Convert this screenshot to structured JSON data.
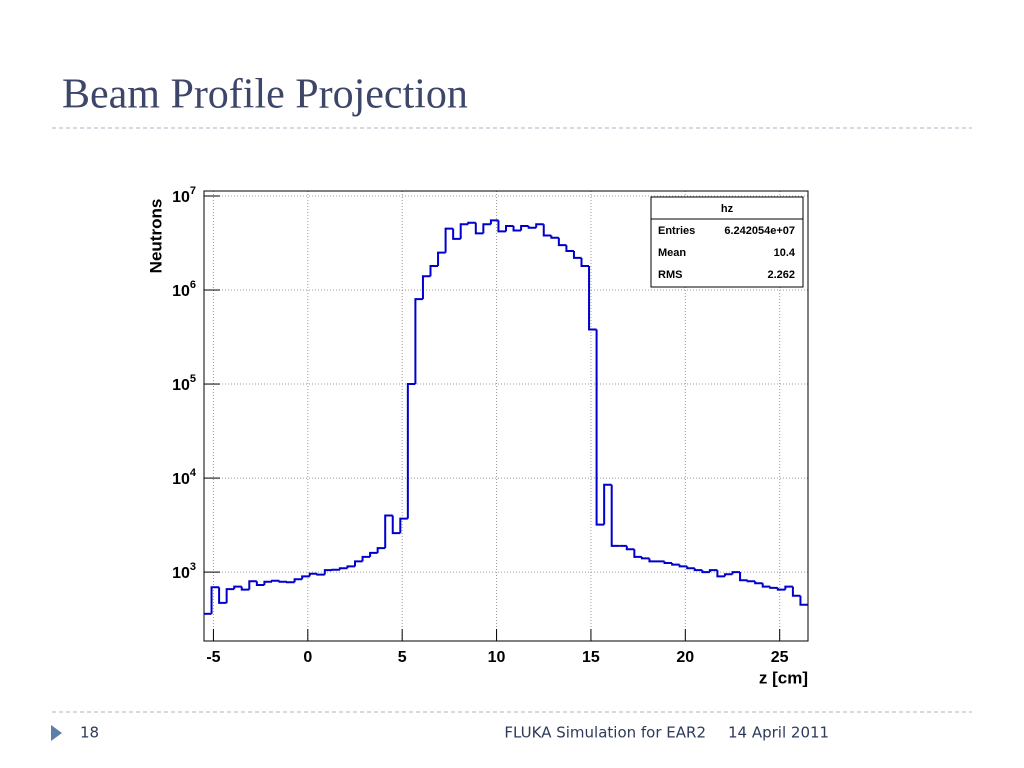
{
  "title": "Beam Profile Projection",
  "footer": {
    "slide_number": "18",
    "presentation": "FLUKA Simulation for EAR2",
    "date": "14 April 2011"
  },
  "chart_data": {
    "type": "histogram",
    "x_label": "z [cm]",
    "y_label": "Neutrons",
    "color": "#0000cc",
    "log_y": true,
    "grid": true,
    "bins": [
      -5.5,
      -5.1,
      -4.7,
      -4.3,
      -3.9,
      -3.5,
      -3.1,
      -2.7,
      -2.3,
      -1.9,
      -1.5,
      -1.1,
      -0.7,
      -0.3,
      0.1,
      0.5,
      0.9,
      1.3,
      1.7,
      2.1,
      2.5,
      2.9,
      3.3,
      3.7,
      4.1,
      4.5,
      4.9,
      5.3,
      5.7,
      6.1,
      6.5,
      6.9,
      7.3,
      7.7,
      8.1,
      8.5,
      8.9,
      9.3,
      9.7,
      10.1,
      10.5,
      10.9,
      11.3,
      11.7,
      12.1,
      12.5,
      12.9,
      13.3,
      13.7,
      14.1,
      14.5,
      14.9,
      15.3,
      15.7,
      16.1,
      16.5,
      16.9,
      17.3,
      17.7,
      18.1,
      18.5,
      18.9,
      19.3,
      19.7,
      20.1,
      20.5,
      20.9,
      21.3,
      21.7,
      22.1,
      22.5,
      22.9,
      23.3,
      23.7,
      24.1,
      24.5,
      24.9,
      25.3,
      25.7,
      26.1,
      26.5
    ],
    "values": [
      360,
      690,
      470,
      660,
      700,
      650,
      800,
      730,
      790,
      810,
      790,
      780,
      840,
      900,
      960,
      940,
      1050,
      1060,
      1100,
      1150,
      1300,
      1450,
      1600,
      1800,
      4000,
      2600,
      3700,
      100000,
      800000,
      1400000,
      1800000,
      2500000,
      4500000,
      3500000,
      5000000,
      5200000,
      4000000,
      5000000,
      5500000,
      4200000,
      4800000,
      4300000,
      4800000,
      4600000,
      5000000,
      3800000,
      3600000,
      3000000,
      2600000,
      2200000,
      1800000,
      380000,
      3200,
      8500,
      1900,
      1900,
      1750,
      1450,
      1400,
      1300,
      1300,
      1250,
      1200,
      1150,
      1100,
      1050,
      1000,
      1050,
      900,
      950,
      1000,
      820,
      800,
      760,
      700,
      680,
      650,
      700,
      560,
      450
    ],
    "xlim": [
      -5.5,
      26.5
    ],
    "xticks": [
      -5,
      0,
      5,
      10,
      15,
      20,
      25
    ],
    "ylim": [
      185,
      11300000
    ],
    "yticks": [
      {
        "value": 1000,
        "label": "10",
        "sup": "3"
      },
      {
        "value": 10000,
        "label": "10",
        "sup": "4"
      },
      {
        "value": 100000,
        "label": "10",
        "sup": "5"
      },
      {
        "value": 1000000,
        "label": "10",
        "sup": "6"
      },
      {
        "value": 10000000,
        "label": "10",
        "sup": "7"
      }
    ],
    "stats": {
      "name": "hz",
      "rows": [
        [
          "Entries",
          "6.242054e+07"
        ],
        [
          "Mean",
          "10.4"
        ],
        [
          "RMS",
          "2.262"
        ]
      ]
    }
  }
}
